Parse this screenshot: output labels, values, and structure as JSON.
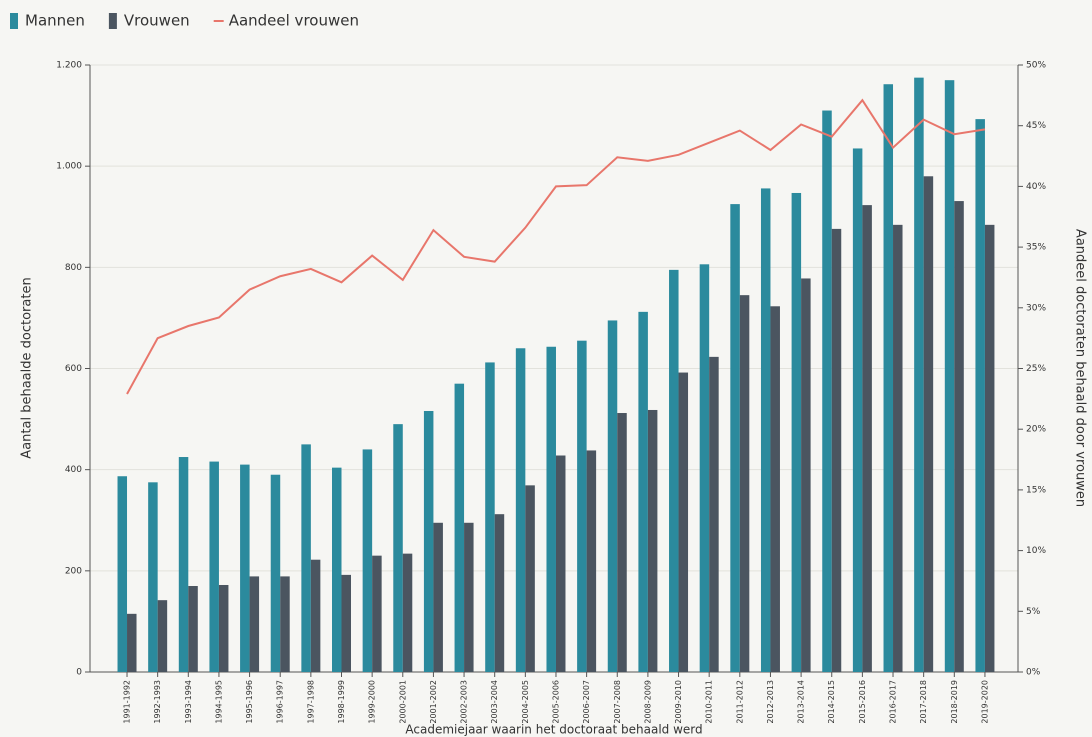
{
  "chart_data": {
    "type": "bar",
    "x_label": "Academiejaar waarin het doctoraat behaald werd",
    "y_label": "Aantal behaalde doctoraten",
    "y2_label": "Aandeel doctoraten behaald door vrouwen",
    "categories": [
      "1991-1992",
      "1992-1993",
      "1993-1994",
      "1994-1995",
      "1995-1996",
      "1996-1997",
      "1997-1998",
      "1998-1999",
      "1999-2000",
      "2000-2001",
      "2001-2002",
      "2002-2003",
      "2003-2004",
      "2004-2005",
      "2005-2006",
      "2006-2007",
      "2007-2008",
      "2008-2009",
      "2009-2010",
      "2010-2011",
      "2011-2012",
      "2012-2013",
      "2013-2014",
      "2014-2015",
      "2015-2016",
      "2016-2017",
      "2017-2018",
      "2018-2019",
      "2019-2020"
    ],
    "series": [
      {
        "name": "Mannen",
        "color": "#2b8a9d",
        "type": "bar",
        "values": [
          387,
          375,
          425,
          416,
          410,
          390,
          450,
          404,
          440,
          490,
          516,
          570,
          612,
          640,
          643,
          655,
          695,
          712,
          795,
          806,
          925,
          956,
          947,
          1110,
          1035,
          1162,
          1175,
          1170,
          1093
        ]
      },
      {
        "name": "Vrouwen",
        "color": "#4b5560",
        "type": "bar",
        "values": [
          115,
          142,
          170,
          172,
          189,
          189,
          222,
          192,
          230,
          234,
          295,
          295,
          312,
          369,
          428,
          438,
          512,
          518,
          592,
          623,
          745,
          723,
          778,
          876,
          923,
          884,
          980,
          931,
          884
        ]
      },
      {
        "name": "Aandeel vrouwen",
        "color": "#e8766b",
        "type": "line",
        "axis": "y2",
        "values": [
          22.9,
          27.5,
          28.5,
          29.2,
          31.5,
          32.6,
          33.2,
          32.1,
          34.3,
          32.3,
          36.4,
          34.2,
          33.8,
          36.6,
          40.0,
          40.1,
          42.4,
          42.1,
          42.6,
          43.6,
          44.6,
          43.0,
          45.1,
          44.1,
          47.1,
          43.2,
          45.5,
          44.3,
          44.7
        ]
      }
    ],
    "ylim": [
      0,
      1200
    ],
    "yticks": [
      0,
      200,
      400,
      600,
      800,
      {
        "value": 1000,
        "label": "1.000"
      },
      {
        "value": 1200,
        "label": "1.200"
      }
    ],
    "y2lim": [
      0,
      50
    ],
    "y2ticks": [
      {
        "value": 0,
        "label": "0%"
      },
      {
        "value": 5,
        "label": "5%"
      },
      {
        "value": 10,
        "label": "10%"
      },
      {
        "value": 15,
        "label": "15%"
      },
      {
        "value": 20,
        "label": "20%"
      },
      {
        "value": 25,
        "label": "25%"
      },
      {
        "value": 30,
        "label": "30%"
      },
      {
        "value": 35,
        "label": "35%"
      },
      {
        "value": 40,
        "label": "40%"
      },
      {
        "value": 45,
        "label": "45%"
      },
      {
        "value": 50,
        "label": "50%"
      }
    ],
    "grid": true,
    "legend": "top-left"
  }
}
